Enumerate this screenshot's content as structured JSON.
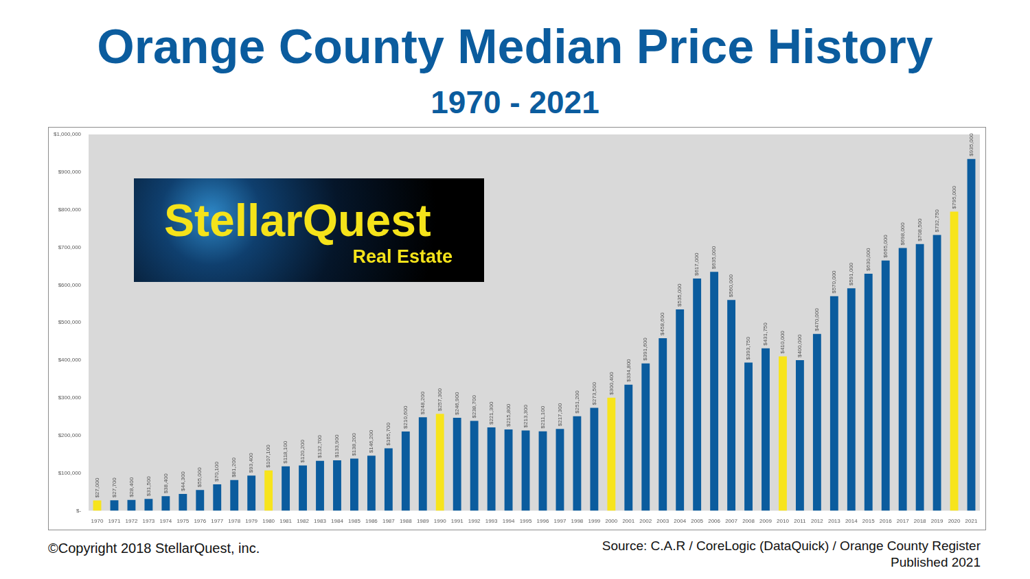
{
  "chart_data": {
    "type": "bar",
    "title": "Orange County Median Price History",
    "subtitle": "1970 - 2021",
    "categories": [
      "1970",
      "1971",
      "1972",
      "1973",
      "1974",
      "1975",
      "1976",
      "1977",
      "1978",
      "1979",
      "1980",
      "1981",
      "1982",
      "1983",
      "1984",
      "1985",
      "1986",
      "1987",
      "1988",
      "1989",
      "1990",
      "1991",
      "1992",
      "1993",
      "1994",
      "1995",
      "1996",
      "1997",
      "1998",
      "1999",
      "2000",
      "2001",
      "2002",
      "2003",
      "2004",
      "2005",
      "2006",
      "2007",
      "2008",
      "2009",
      "2010",
      "2011",
      "2012",
      "2013",
      "2014",
      "2015",
      "2016",
      "2017",
      "2018",
      "2019",
      "2020",
      "2021"
    ],
    "values": [
      27000,
      27700,
      28400,
      31500,
      38400,
      44300,
      55000,
      70100,
      81200,
      93400,
      107100,
      118100,
      120200,
      132700,
      133900,
      138200,
      146200,
      165700,
      210600,
      248200,
      257300,
      246900,
      238700,
      221300,
      215800,
      213300,
      211100,
      217300,
      251200,
      273500,
      300400,
      334800,
      391600,
      458600,
      535000,
      617000,
      635000,
      560000,
      393750,
      431750,
      410000,
      400000,
      470000,
      570000,
      591000,
      630000,
      665000,
      698000,
      708500,
      732750,
      795000,
      935000
    ],
    "value_labels": [
      "$27,000",
      "$27,700",
      "$28,400",
      "$31,500",
      "$38,400",
      "$44,300",
      "$55,000",
      "$70,100",
      "$81,200",
      "$93,400",
      "$107,100",
      "$118,100",
      "$120,200",
      "$132,700",
      "$133,900",
      "$138,200",
      "$146,200",
      "$165,700",
      "$210,600",
      "$248,200",
      "$257,300",
      "$246,900",
      "$238,700",
      "$221,300",
      "$215,800",
      "$213,300",
      "$211,100",
      "$217,300",
      "$251,200",
      "$273,500",
      "$300,400",
      "$334,800",
      "$391,600",
      "$458,600",
      "$535,000",
      "$617,000",
      "$635,000",
      "$560,000",
      "$393,750",
      "$431,750",
      "$410,000",
      "$400,000",
      "$470,000",
      "$570,000",
      "$591,000",
      "$630,000",
      "$665,000",
      "$698,000",
      "$708,500",
      "$732,750",
      "$795,000",
      "$935,000"
    ],
    "colors": [
      "#f7e41c",
      "#0b5c9e",
      "#0b5c9e",
      "#0b5c9e",
      "#0b5c9e",
      "#0b5c9e",
      "#0b5c9e",
      "#0b5c9e",
      "#0b5c9e",
      "#0b5c9e",
      "#f7e41c",
      "#0b5c9e",
      "#0b5c9e",
      "#0b5c9e",
      "#0b5c9e",
      "#0b5c9e",
      "#0b5c9e",
      "#0b5c9e",
      "#0b5c9e",
      "#0b5c9e",
      "#f7e41c",
      "#0b5c9e",
      "#0b5c9e",
      "#0b5c9e",
      "#0b5c9e",
      "#0b5c9e",
      "#0b5c9e",
      "#0b5c9e",
      "#0b5c9e",
      "#0b5c9e",
      "#f7e41c",
      "#0b5c9e",
      "#0b5c9e",
      "#0b5c9e",
      "#0b5c9e",
      "#0b5c9e",
      "#0b5c9e",
      "#0b5c9e",
      "#0b5c9e",
      "#0b5c9e",
      "#f7e41c",
      "#0b5c9e",
      "#0b5c9e",
      "#0b5c9e",
      "#0b5c9e",
      "#0b5c9e",
      "#0b5c9e",
      "#0b5c9e",
      "#0b5c9e",
      "#0b5c9e",
      "#f7e41c",
      "#0b5c9e"
    ],
    "ylim": [
      0,
      1000000
    ],
    "yticks": [
      {
        "value": 0,
        "label": "$-"
      },
      {
        "value": 100000,
        "label": "$100,000"
      },
      {
        "value": 200000,
        "label": "$200,000"
      },
      {
        "value": 300000,
        "label": "$300,000"
      },
      {
        "value": 400000,
        "label": "$400,000"
      },
      {
        "value": 500000,
        "label": "$500,000"
      },
      {
        "value": 600000,
        "label": "$600,000"
      },
      {
        "value": 700000,
        "label": "$700,000"
      },
      {
        "value": 800000,
        "label": "$800,000"
      },
      {
        "value": 900000,
        "label": "$900,000"
      },
      {
        "value": 1000000,
        "label": "$1,000,000"
      }
    ],
    "grid": false,
    "data_labels": true
  },
  "logo": {
    "title": "StellarQuest",
    "subtitle": "Real Estate"
  },
  "footer": {
    "copyright": "©Copyright 2018 StellarQuest, inc.",
    "source": "Source: C.A.R / CoreLogic (DataQuick) / Orange County Register",
    "published": "Published 2021"
  }
}
